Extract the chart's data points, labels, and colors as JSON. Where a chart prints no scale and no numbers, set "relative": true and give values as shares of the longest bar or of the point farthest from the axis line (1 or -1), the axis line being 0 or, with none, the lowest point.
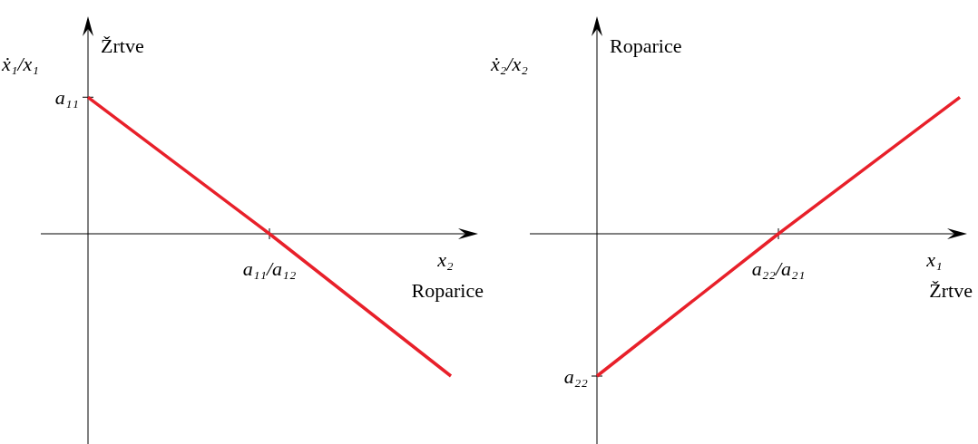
{
  "chart_data": [
    {
      "type": "line",
      "relative": true,
      "categories": [
        null,
        null,
        null
      ],
      "values": [
        0.96,
        0,
        -1
      ],
      "color": "#e8202a",
      "ylabel": "ẋ₁/x₁",
      "xlabel": "x₂",
      "annotations": [
        "Žrtve",
        "Roparice",
        "a₁₁",
        "a₁₁/a₁₂"
      ]
    },
    {
      "type": "line",
      "relative": true,
      "categories": [
        null,
        null,
        null
      ],
      "values": [
        -1,
        0,
        0.96
      ],
      "color": "#e8202a",
      "ylabel": "ẋ₂/x₂",
      "xlabel": "x₁",
      "annotations": [
        "Roparice",
        "Žrtve",
        "a₂₂",
        "a₂₂/a₂₁"
      ]
    }
  ]
}
